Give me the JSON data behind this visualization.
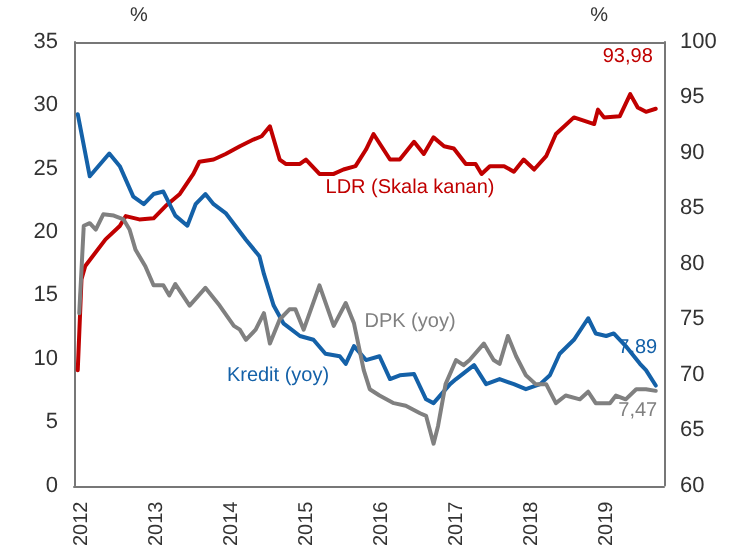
{
  "chart_data": {
    "type": "line",
    "ylabel": "%",
    "y2label": "%",
    "xlim": [
      2011.9,
      2019.76
    ],
    "xticks": [
      2012,
      2013,
      2014,
      2015,
      2016,
      2017,
      2018,
      2019
    ],
    "ylim": [
      0,
      35
    ],
    "yticks": [
      0,
      5,
      10,
      15,
      20,
      25,
      30,
      35
    ],
    "y2lim": [
      60,
      100
    ],
    "y2ticks": [
      60,
      65,
      70,
      75,
      80,
      85,
      90,
      95,
      100
    ],
    "grid": false,
    "legend": false,
    "marker": "none",
    "line_style": "solid",
    "series": [
      {
        "name": "LDR (Skala kanan)",
        "color": "#c00000",
        "axis": "y2",
        "x": [
          2011.95,
          2012.0,
          2012.05,
          2012.32,
          2012.51,
          2012.59,
          2012.77,
          2012.96,
          2013.12,
          2013.31,
          2013.49,
          2013.57,
          2013.76,
          2013.92,
          2014.11,
          2014.29,
          2014.4,
          2014.51,
          2014.64,
          2014.72,
          2014.91,
          2014.99,
          2015.17,
          2015.36,
          2015.49,
          2015.65,
          2015.79,
          2015.89,
          2016.11,
          2016.24,
          2016.43,
          2016.56,
          2016.69,
          2016.83,
          2016.96,
          2017.12,
          2017.25,
          2017.33,
          2017.44,
          2017.63,
          2017.76,
          2017.89,
          2018.03,
          2018.19,
          2018.32,
          2018.56,
          2018.83,
          2018.88,
          2018.96,
          2019.17,
          2019.31,
          2019.41,
          2019.52,
          2019.65
        ],
        "values": [
          70.4,
          78.6,
          79.8,
          82.2,
          83.4,
          84.3,
          84.0,
          84.1,
          85.2,
          86.3,
          88.1,
          89.2,
          89.4,
          89.9,
          90.6,
          91.2,
          91.5,
          92.4,
          89.4,
          89.0,
          89.0,
          89.4,
          88.1,
          88.1,
          88.5,
          88.8,
          90.3,
          91.7,
          89.4,
          89.4,
          91.0,
          89.9,
          91.4,
          90.6,
          90.4,
          89.0,
          89.0,
          88.1,
          88.8,
          88.8,
          88.3,
          89.4,
          88.5,
          89.7,
          91.7,
          93.2,
          92.6,
          93.9,
          93.2,
          93.3,
          95.3,
          94.1,
          93.7,
          93.98
        ],
        "value_labels": [
          null,
          null,
          null,
          null,
          null,
          null,
          null,
          null,
          null,
          null,
          null,
          null,
          null,
          null,
          null,
          null,
          null,
          null,
          null,
          null,
          null,
          null,
          null,
          null,
          null,
          null,
          null,
          null,
          null,
          null,
          null,
          null,
          null,
          null,
          null,
          null,
          null,
          null,
          null,
          null,
          null,
          null,
          null,
          null,
          null,
          null,
          null,
          null,
          null,
          null,
          null,
          null,
          null,
          "93,98"
        ]
      },
      {
        "name": "Kredit (yoy)",
        "color": "#1461a8",
        "x": [
          2011.95,
          2012.11,
          2012.37,
          2012.51,
          2012.69,
          2012.83,
          2012.96,
          2013.09,
          2013.25,
          2013.41,
          2013.52,
          2013.65,
          2013.76,
          2013.92,
          2014.19,
          2014.37,
          2014.43,
          2014.56,
          2014.69,
          2014.91,
          2015.09,
          2015.25,
          2015.44,
          2015.52,
          2015.63,
          2015.79,
          2015.97,
          2016.11,
          2016.24,
          2016.43,
          2016.59,
          2016.69,
          2016.91,
          2016.99,
          2017.23,
          2017.39,
          2017.57,
          2017.76,
          2017.92,
          2018.11,
          2018.24,
          2018.37,
          2018.56,
          2018.75,
          2018.85,
          2018.99,
          2019.09,
          2019.25,
          2019.44,
          2019.52,
          2019.65
        ],
        "values": [
          29.3,
          24.4,
          26.2,
          25.2,
          22.8,
          22.2,
          23.0,
          23.2,
          21.3,
          20.5,
          22.2,
          23.0,
          22.2,
          21.5,
          19.4,
          18.1,
          16.7,
          14.2,
          12.8,
          11.8,
          11.5,
          10.4,
          10.2,
          9.6,
          11.0,
          9.9,
          10.2,
          8.4,
          8.7,
          8.8,
          6.8,
          6.5,
          8.0,
          8.4,
          9.5,
          8.0,
          8.4,
          8.0,
          7.6,
          8.0,
          8.7,
          10.4,
          11.5,
          13.2,
          12.0,
          11.8,
          12.0,
          11.0,
          9.6,
          9.1,
          7.89
        ],
        "value_labels": [
          null,
          null,
          null,
          null,
          null,
          null,
          null,
          null,
          null,
          null,
          null,
          null,
          null,
          null,
          null,
          null,
          null,
          null,
          null,
          null,
          null,
          null,
          null,
          null,
          null,
          null,
          null,
          null,
          null,
          null,
          null,
          null,
          null,
          null,
          null,
          null,
          null,
          null,
          null,
          null,
          null,
          null,
          null,
          null,
          null,
          null,
          null,
          null,
          null,
          null,
          "7,89"
        ]
      },
      {
        "name": "DPK (yoy)",
        "color": "#808080",
        "x": [
          2011.97,
          2012.03,
          2012.11,
          2012.19,
          2012.29,
          2012.43,
          2012.56,
          2012.64,
          2012.72,
          2012.85,
          2012.96,
          2013.09,
          2013.17,
          2013.25,
          2013.44,
          2013.65,
          2013.84,
          2014.03,
          2014.11,
          2014.19,
          2014.32,
          2014.43,
          2014.51,
          2014.64,
          2014.77,
          2014.85,
          2014.96,
          2015.17,
          2015.36,
          2015.52,
          2015.63,
          2015.76,
          2015.84,
          2015.97,
          2016.16,
          2016.32,
          2016.51,
          2016.59,
          2016.69,
          2016.75,
          2016.85,
          2016.99,
          2017.09,
          2017.17,
          2017.36,
          2017.49,
          2017.57,
          2017.68,
          2017.79,
          2017.92,
          2018.05,
          2018.19,
          2018.32,
          2018.45,
          2018.64,
          2018.75,
          2018.85,
          2019.04,
          2019.12,
          2019.25,
          2019.39,
          2019.52,
          2019.65
        ],
        "values": [
          13.6,
          20.5,
          20.7,
          20.2,
          21.4,
          21.3,
          21.0,
          20.2,
          18.6,
          17.3,
          15.8,
          15.8,
          15.0,
          15.9,
          14.2,
          15.6,
          14.2,
          12.6,
          12.3,
          11.5,
          12.3,
          13.6,
          11.2,
          13.1,
          13.9,
          13.9,
          12.3,
          15.8,
          12.6,
          14.4,
          12.8,
          9.1,
          7.6,
          7.1,
          6.5,
          6.3,
          5.7,
          5.5,
          3.3,
          4.7,
          8.0,
          9.9,
          9.5,
          9.9,
          11.2,
          9.9,
          9.6,
          11.8,
          10.2,
          8.7,
          8.0,
          8.0,
          6.5,
          7.1,
          6.8,
          7.4,
          6.5,
          6.5,
          7.1,
          6.8,
          7.6,
          7.6,
          7.47
        ],
        "value_labels": [
          null,
          null,
          null,
          null,
          null,
          null,
          null,
          null,
          null,
          null,
          null,
          null,
          null,
          null,
          null,
          null,
          null,
          null,
          null,
          null,
          null,
          null,
          null,
          null,
          null,
          null,
          null,
          null,
          null,
          null,
          null,
          null,
          null,
          null,
          null,
          null,
          null,
          null,
          null,
          null,
          null,
          null,
          null,
          null,
          null,
          null,
          null,
          null,
          null,
          null,
          null,
          null,
          null,
          null,
          null,
          null,
          null,
          null,
          null,
          null,
          null,
          null,
          "7,47"
        ]
      }
    ]
  }
}
